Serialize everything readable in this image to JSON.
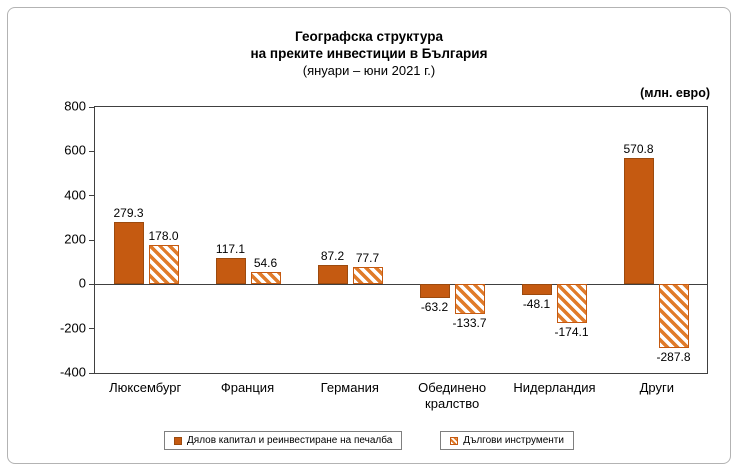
{
  "figure": {
    "title_line1": "Географска структура",
    "title_line2": "на преките инвестиции в България",
    "subtitle": "(януари – юни 2021 г.)",
    "units_label": "(млн. евро)"
  },
  "chart_data": {
    "type": "bar",
    "title": "Географска структура на преките инвестиции в България (януари – юни 2021 г.)",
    "xlabel": "",
    "ylabel": "млн. евро",
    "ylim": [
      -400,
      800
    ],
    "yticks": [
      800,
      600,
      400,
      200,
      0,
      -200,
      -400
    ],
    "grid": false,
    "legend_position": "bottom",
    "data_labels": true,
    "categories": [
      "Люксембург",
      "Франция",
      "Германия",
      "Обединено кралство",
      "Нидерландия",
      "Други"
    ],
    "series": [
      {
        "name": "Дялов капитал и реинвестиране на печалба",
        "values": [
          279.3,
          117.1,
          87.2,
          -63.2,
          -48.1,
          570.8
        ],
        "style": "solid",
        "color": "#C55A11",
        "border_color": "#9C4A0E"
      },
      {
        "name": "Дългови инструменти",
        "values": [
          178.0,
          54.6,
          77.7,
          -133.7,
          -174.1,
          -287.8
        ],
        "style": "hatched",
        "color": "#E07B2A",
        "border_color": "#C55A11"
      }
    ]
  }
}
